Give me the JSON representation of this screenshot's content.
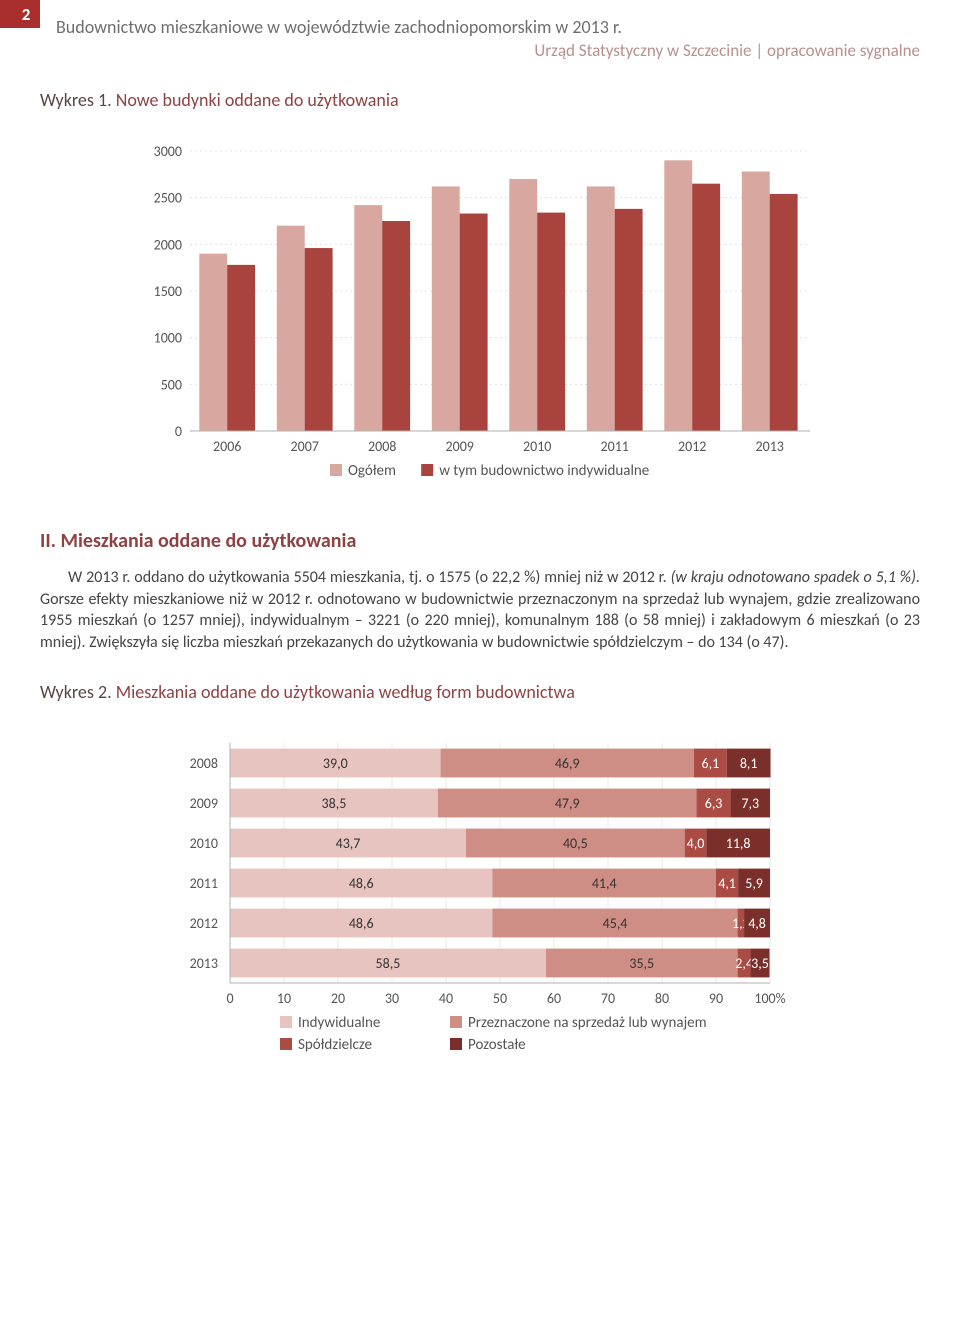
{
  "header": {
    "page_number": "2",
    "title": "Budownictwo mieszkaniowe w województwie zachodniopomorskim w 2013 r.",
    "subtitle": "Urząd Statystyczny w Szczecinie | opracowanie sygnalne"
  },
  "chart1": {
    "caption_prefix": "Wykres 1.",
    "caption": "Nowe budynki oddane do użytkowania",
    "type": "bar",
    "categories": [
      "2006",
      "2007",
      "2008",
      "2009",
      "2010",
      "2011",
      "2012",
      "2013"
    ],
    "series": [
      {
        "name": "Ogółem",
        "color": "#d8a7a0",
        "values": [
          1900,
          2200,
          2420,
          2620,
          2700,
          2620,
          2900,
          2780
        ]
      },
      {
        "name": "w tym budownictwo indywidualne",
        "color": "#a9433d",
        "values": [
          1780,
          1960,
          2250,
          2330,
          2340,
          2380,
          2650,
          2540
        ]
      }
    ],
    "ymax": 3000,
    "ystep": 500,
    "axis_color": "#b0b0b0",
    "grid_color": "#e0e0e0",
    "tick_font": 14,
    "legend_font": 15
  },
  "section2": {
    "heading": "II.   Mieszkania oddane do użytkowania",
    "paragraph_parts": [
      {
        "text": "W 2013 r. oddano do użytkowania 5504 mieszkania, tj. o 1575 (o 22,2 %) mniej niż w 2012 r. ",
        "italic": false
      },
      {
        "text": "(w kraju odnotowano spadek o 5,1 %).",
        "italic": true
      },
      {
        "text": " Gorsze efekty mieszkaniowe niż w 2012 r. odnotowano w budownictwie przeznaczonym na sprzedaż lub wynajem, gdzie zrealizowano 1955 mieszkań (o 1257 mniej), indywidualnym – 3221 (o 220 mniej), komunalnym 188 (o 58 mniej) i zakładowym 6 mieszkań (o 23 mniej). Zwiększyła się liczba mieszkań przekazanych do użytkowania w budownictwie spółdzielczym – do 134 (o 47).",
        "italic": false
      }
    ]
  },
  "chart2": {
    "caption_prefix": "Wykres 2.",
    "caption": "Mieszkania oddane do użytkowania według form budownictwa",
    "type": "stacked-bar-horizontal",
    "categories": [
      "2008",
      "2009",
      "2010",
      "2011",
      "2012",
      "2013"
    ],
    "series": [
      {
        "name": "Indywidualne",
        "color": "#e7c4bf"
      },
      {
        "name": "Przeznaczone na sprzedaż lub wynajem",
        "color": "#cf8e85"
      },
      {
        "name": "Spółdzielcze",
        "color": "#aa4b44"
      },
      {
        "name": "Pozostałe",
        "color": "#7a2f2a"
      }
    ],
    "rows": [
      {
        "year": "2008",
        "values": [
          39.0,
          46.9,
          6.1,
          8.1
        ],
        "labels": [
          "39,0",
          "46,9",
          "6,1",
          "8,1"
        ]
      },
      {
        "year": "2009",
        "values": [
          38.5,
          47.9,
          6.3,
          7.3
        ],
        "labels": [
          "38,5",
          "47,9",
          "6,3",
          "7,3"
        ]
      },
      {
        "year": "2010",
        "values": [
          43.7,
          40.5,
          4.0,
          11.8
        ],
        "labels": [
          "43,7",
          "40,5",
          "4,0",
          "11,8"
        ]
      },
      {
        "year": "2011",
        "values": [
          48.6,
          41.4,
          4.1,
          5.9
        ],
        "labels": [
          "48,6",
          "41,4",
          "4,1",
          "5,9"
        ]
      },
      {
        "year": "2012",
        "values": [
          48.6,
          45.4,
          1.2,
          4.8
        ],
        "labels": [
          "48,6",
          "45,4",
          "1,2",
          "4,8"
        ]
      },
      {
        "year": "2013",
        "values": [
          58.5,
          35.5,
          2.4,
          3.5
        ],
        "labels": [
          "58,5",
          "35,5",
          "2,4",
          "3,5"
        ]
      }
    ],
    "xmax": 100,
    "xstep": 10,
    "xsuffix_last": "100%",
    "axis_color": "#b0b0b0",
    "tick_font": 14,
    "legend_font": 15,
    "label_font": 14,
    "label_color_dark": "#333",
    "label_color_light": "#fff"
  }
}
